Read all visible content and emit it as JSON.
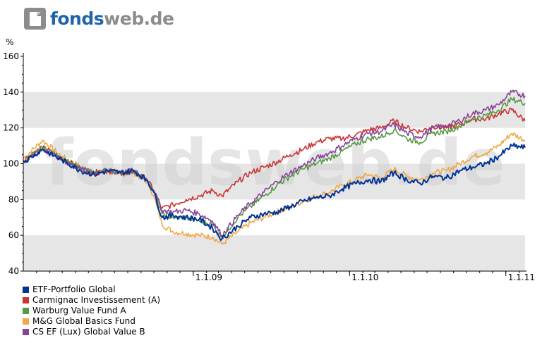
{
  "logo": {
    "part1": "fonds",
    "part2": "web.de"
  },
  "watermark": "fondsweb.de",
  "colors": {
    "band": "#e6e6e6",
    "axis": "#000000",
    "brand_blue": "#1f63a8",
    "brand_gray": "#8c8c8c"
  },
  "chart_data": {
    "type": "line",
    "ylabel": "%",
    "xlabel": "",
    "title": "",
    "ylim": [
      40,
      160
    ],
    "yticks": [
      40,
      60,
      80,
      100,
      120,
      140,
      160
    ],
    "x_domain": [
      "2007-12-01",
      "2011-02-15"
    ],
    "xticks": [
      {
        "date": "2009-01-01",
        "label": "1.1.09"
      },
      {
        "date": "2010-01-01",
        "label": "1.1.10"
      },
      {
        "date": "2011-01-01",
        "label": "1.1.11"
      }
    ],
    "grid": "horizontal bands",
    "legend_position": "bottom-left",
    "x": [
      "2007-12-01",
      "2008-01-15",
      "2008-03-01",
      "2008-04-15",
      "2008-05-15",
      "2008-06-15",
      "2008-07-15",
      "2008-08-15",
      "2008-09-15",
      "2008-10-01",
      "2008-10-20",
      "2008-11-15",
      "2008-12-15",
      "2009-01-15",
      "2009-02-15",
      "2009-03-09",
      "2009-04-15",
      "2009-05-15",
      "2009-06-15",
      "2009-07-15",
      "2009-08-15",
      "2009-09-15",
      "2009-10-15",
      "2009-11-15",
      "2009-12-15",
      "2010-01-15",
      "2010-02-15",
      "2010-03-15",
      "2010-04-15",
      "2010-05-15",
      "2010-06-15",
      "2010-07-15",
      "2010-08-15",
      "2010-09-15",
      "2010-10-15",
      "2010-11-15",
      "2010-12-15",
      "2011-01-15",
      "2011-02-15"
    ],
    "series": [
      {
        "name": "ETF-Portfolio Global",
        "color": "#003399",
        "values": [
          101,
          108,
          102,
          96,
          94,
          96,
          95,
          96,
          91,
          84,
          70,
          71,
          70,
          69,
          64,
          58,
          65,
          70,
          72,
          73,
          76,
          79,
          81,
          82,
          86,
          89,
          91,
          90,
          95,
          91,
          89,
          93,
          92,
          96,
          98,
          100,
          104,
          110,
          109
        ]
      },
      {
        "name": "Carmignac Investissement (A)",
        "color": "#cc3333",
        "values": [
          102,
          109,
          103,
          97,
          95,
          96,
          95,
          96,
          91,
          85,
          75,
          77,
          80,
          82,
          85,
          82,
          90,
          95,
          98,
          101,
          105,
          108,
          112,
          114,
          114,
          116,
          119,
          120,
          124,
          120,
          118,
          121,
          120,
          122,
          125,
          125,
          128,
          130,
          124
        ]
      },
      {
        "name": "Warburg Value Fund A",
        "color": "#559944",
        "values": [
          101,
          109,
          103,
          97,
          95,
          96,
          95,
          96,
          91,
          84,
          72,
          70,
          70,
          68,
          66,
          59,
          70,
          76,
          82,
          88,
          93,
          97,
          100,
          103,
          107,
          111,
          114,
          115,
          119,
          114,
          112,
          117,
          118,
          121,
          125,
          127,
          130,
          136,
          134
        ]
      },
      {
        "name": "M&G Global Basics Fund",
        "color": "#f0a848",
        "values": [
          103,
          113,
          104,
          98,
          94,
          96,
          94,
          95,
          90,
          82,
          66,
          62,
          61,
          60,
          59,
          55,
          62,
          67,
          70,
          73,
          76,
          79,
          82,
          84,
          88,
          91,
          94,
          92,
          97,
          93,
          91,
          95,
          96,
          100,
          104,
          106,
          110,
          117,
          113
        ]
      },
      {
        "name": "CS EF (Lux) Global Value B",
        "color": "#884499",
        "values": [
          101,
          108,
          102,
          97,
          95,
          96,
          95,
          96,
          91,
          85,
          74,
          73,
          74,
          72,
          68,
          60,
          71,
          78,
          84,
          90,
          95,
          99,
          103,
          106,
          110,
          114,
          117,
          118,
          122,
          117,
          115,
          120,
          121,
          124,
          128,
          130,
          133,
          140,
          138
        ]
      }
    ]
  }
}
